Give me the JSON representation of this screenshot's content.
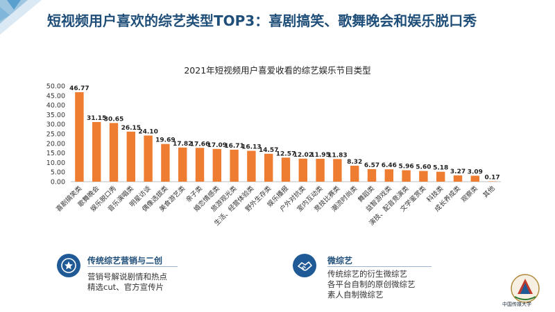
{
  "page": {
    "headline": "短视频用户喜欢的综艺类型TOP3：喜剧搞笑、歌舞晚会和娱乐脱口秀",
    "accent_color": "#1f4e79",
    "bar_color": "#ee7d31"
  },
  "chart_data": {
    "type": "bar",
    "title": "2021年短视频用户喜爱收看的综艺娱乐节目类型",
    "categories": [
      "喜剧搞笑类",
      "歌舞晚会",
      "娱乐脱口秀",
      "音乐演唱类",
      "明星访谈",
      "偶像选拔类",
      "美食游艺类",
      "亲子类",
      "婚恋情感类",
      "旅游观光类",
      "生活、经营体验类",
      "野外生存类",
      "娱乐播报",
      "户外对抗类",
      "室内互动类",
      "竞技比赛类",
      "潮流时尚类",
      "舞蹈类",
      "益智游戏类",
      "演技、配音竞演类",
      "文学鉴赏类",
      "科技类",
      "成长养成类",
      "观察类",
      "其他"
    ],
    "values": [
      46.77,
      31.15,
      30.65,
      26.15,
      24.1,
      19.69,
      17.82,
      17.66,
      17.09,
      16.71,
      16.13,
      14.57,
      12.57,
      12.02,
      11.95,
      11.83,
      8.32,
      6.57,
      6.46,
      5.96,
      5.6,
      5.18,
      3.27,
      3.09,
      0.17
    ],
    "value_labels": [
      "46.77",
      "31.15",
      "30.65",
      "26.15",
      "24.10",
      "19.69",
      "17.82",
      "17.66",
      "17.09",
      "16.71",
      "16.13",
      "14.57",
      "12.57",
      "12.02",
      "11.95",
      "11.83",
      "8.32",
      "6.57",
      "6.46",
      "5.96",
      "5.60",
      "5.18",
      "3.27",
      "3.09",
      "0.17"
    ],
    "ylim": [
      0,
      50
    ],
    "yticks": [
      "0.00",
      "5.00",
      "10.00",
      "15.00",
      "20.00",
      "25.00",
      "30.00",
      "35.00",
      "40.00",
      "45.00",
      "50.00"
    ],
    "xlabel": "",
    "ylabel": "",
    "grid": false
  },
  "cards": [
    {
      "icon": "medal-icon",
      "title": "传统综艺营销与二创",
      "lines": [
        "营销号解说剧情和热点",
        "精选cut、官方宣传片"
      ]
    },
    {
      "icon": "handshake-icon",
      "title": "微综艺",
      "lines": [
        "传统综艺的衍生微综艺",
        "各平台自制的原创微综艺",
        "素人自制微综艺"
      ]
    }
  ],
  "logo": {
    "text": "中国传媒大学"
  }
}
